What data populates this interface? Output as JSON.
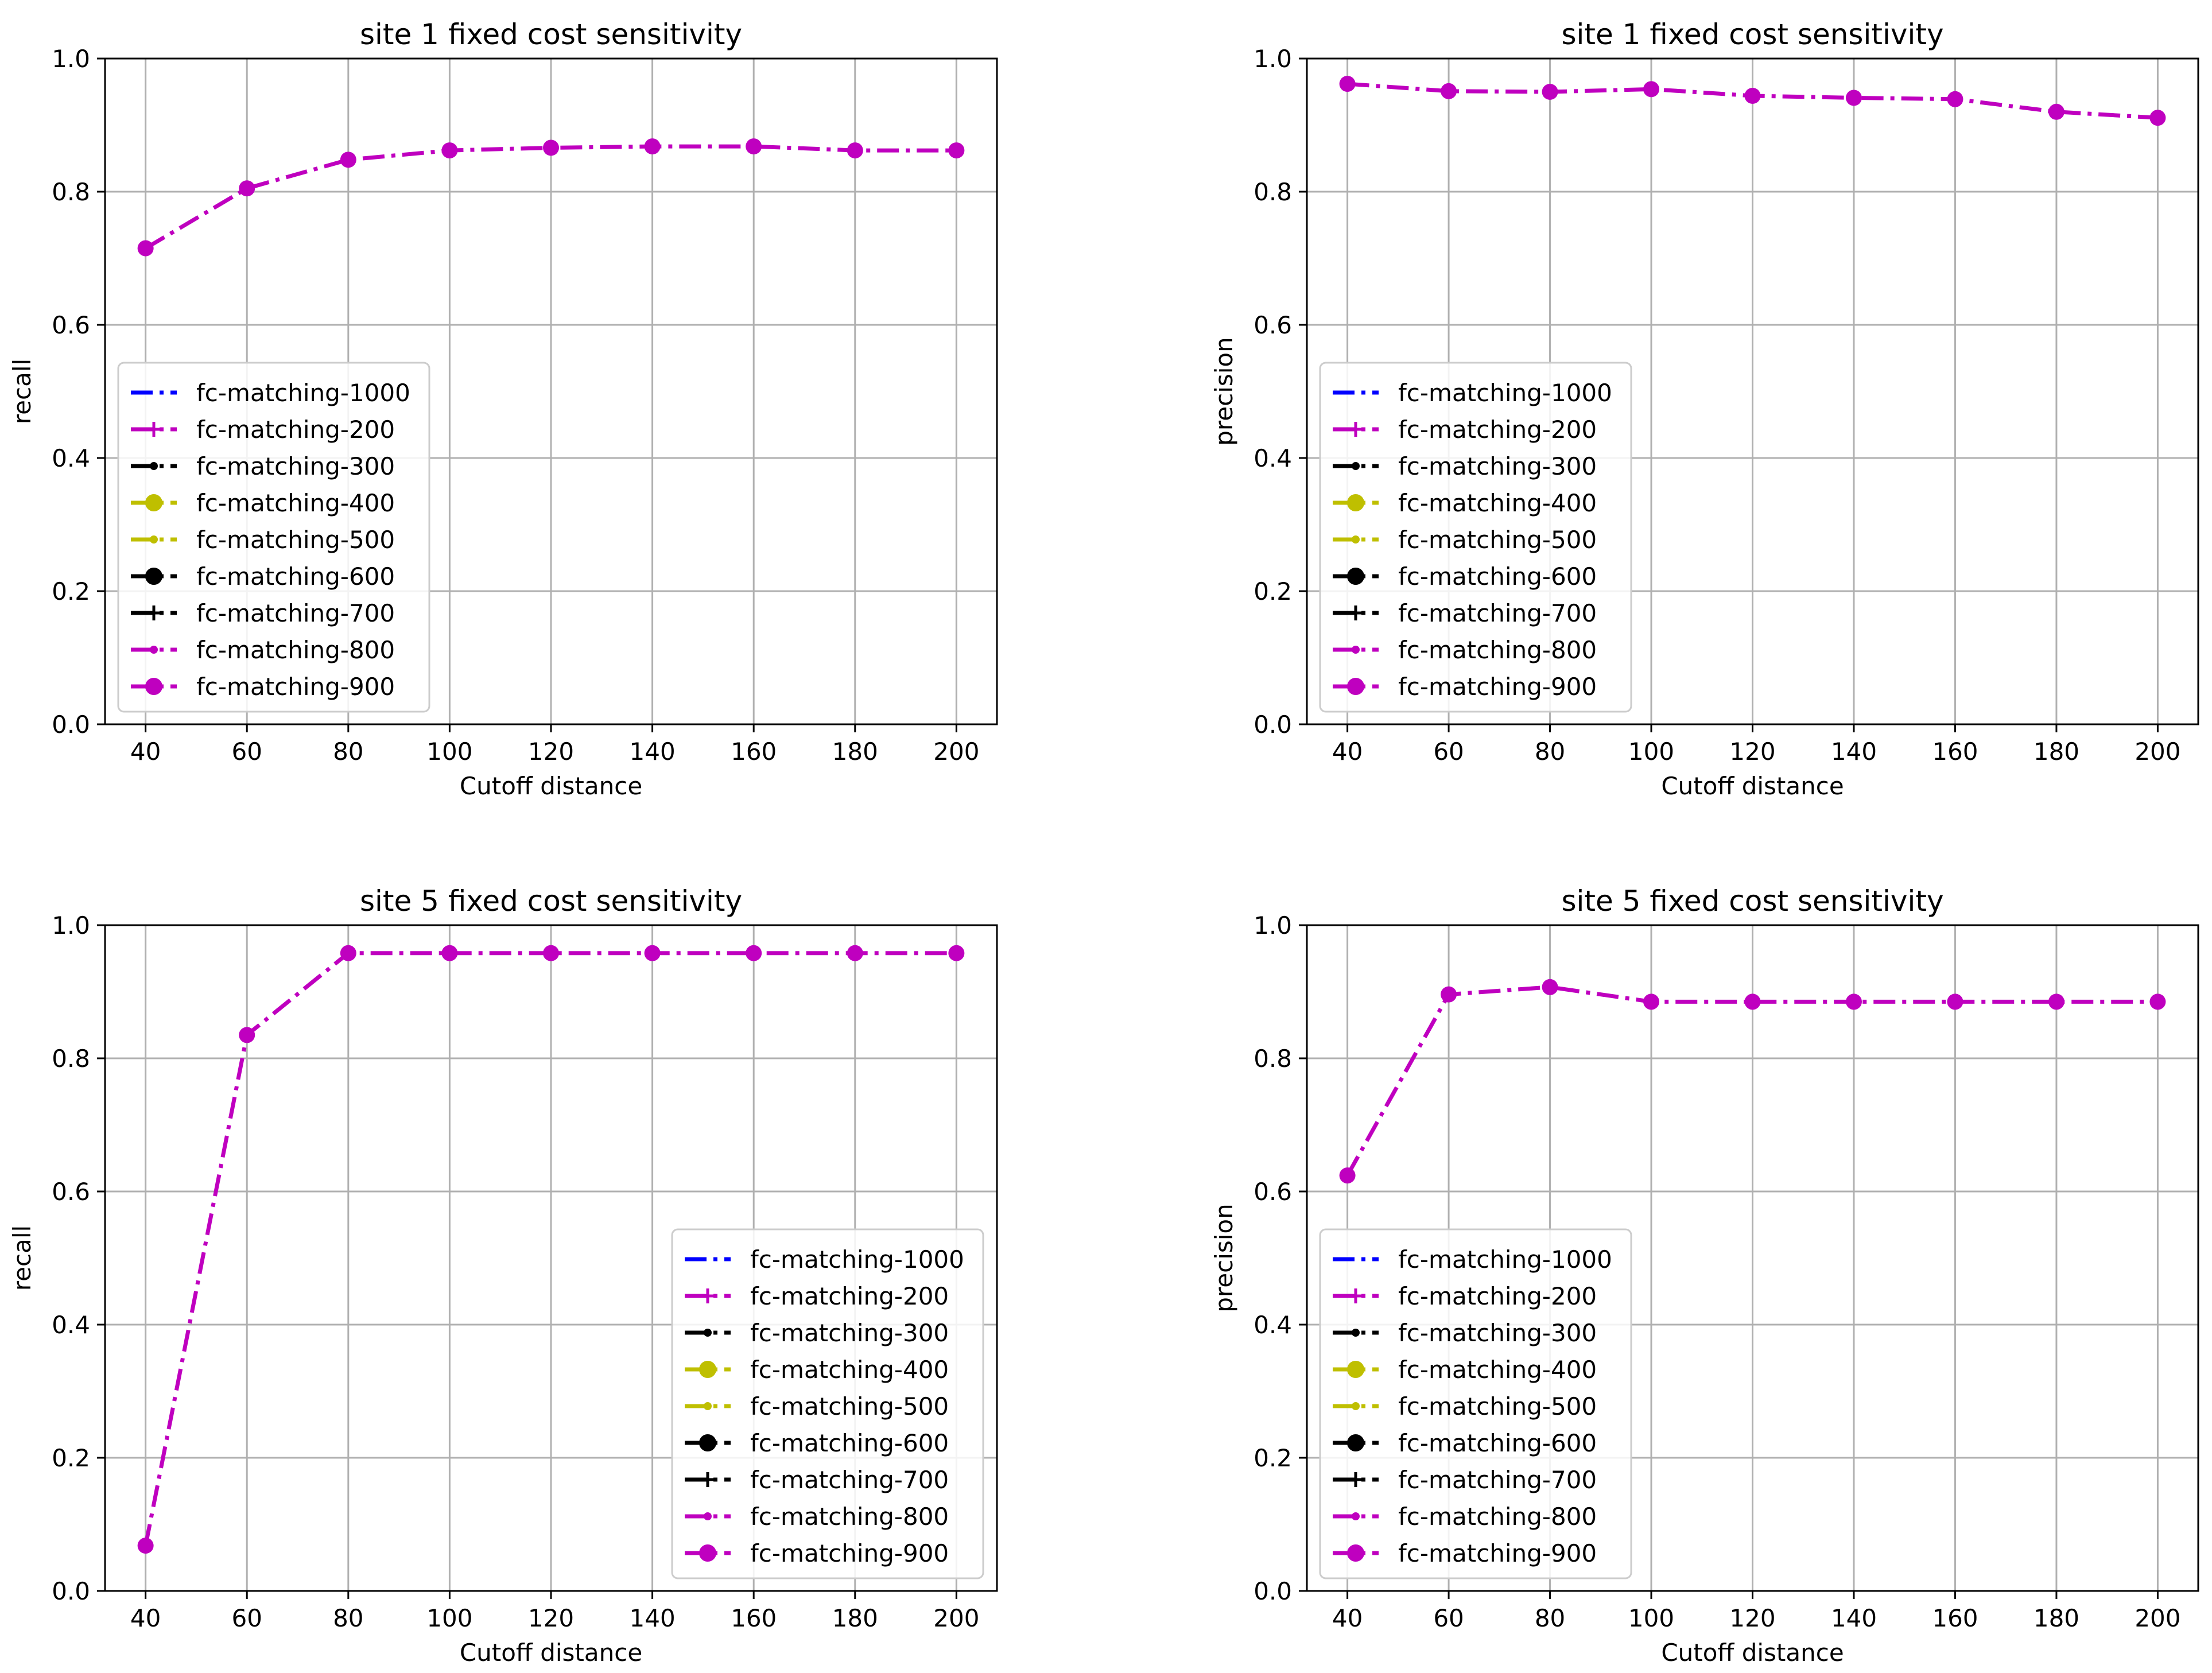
{
  "figure": {
    "layout": "2x2 grid of line charts"
  },
  "legend_entries": [
    {
      "label": "fc-matching-1000",
      "color": "#0000ff",
      "marker": "none"
    },
    {
      "label": "fc-matching-200",
      "color": "#bf00bf",
      "marker": "plus"
    },
    {
      "label": "fc-matching-300",
      "color": "#000000",
      "marker": "small-dot"
    },
    {
      "label": "fc-matching-400",
      "color": "#bfbf00",
      "marker": "circle"
    },
    {
      "label": "fc-matching-500",
      "color": "#bfbf00",
      "marker": "small-dot"
    },
    {
      "label": "fc-matching-600",
      "color": "#000000",
      "marker": "circle"
    },
    {
      "label": "fc-matching-700",
      "color": "#000000",
      "marker": "plus"
    },
    {
      "label": "fc-matching-800",
      "color": "#bf00bf",
      "marker": "small-dot"
    },
    {
      "label": "fc-matching-900",
      "color": "#bf00bf",
      "marker": "circle"
    }
  ],
  "chart_data": [
    {
      "type": "line",
      "title": "site 1 fixed cost sensitivity",
      "xlabel": "Cutoff distance",
      "ylabel": "recall",
      "x": [
        40,
        60,
        80,
        100,
        120,
        140,
        160,
        180,
        200
      ],
      "xticks": [
        "40",
        "60",
        "80",
        "100",
        "120",
        "140",
        "160",
        "180",
        "200"
      ],
      "yticks": [
        "0.0",
        "0.2",
        "0.4",
        "0.6",
        "0.8",
        "1.0"
      ],
      "xlim": [
        32,
        208
      ],
      "ylim": [
        0.0,
        1.0
      ],
      "grid": true,
      "legend_position": "lower-left",
      "series": [
        {
          "name": "fc-matching-900",
          "color": "#bf00bf",
          "values": [
            0.715,
            0.805,
            0.848,
            0.862,
            0.866,
            0.868,
            0.868,
            0.862,
            0.862
          ]
        }
      ]
    },
    {
      "type": "line",
      "title": "site 1 fixed cost sensitivity",
      "xlabel": "Cutoff distance",
      "ylabel": "precision",
      "x": [
        40,
        60,
        80,
        100,
        120,
        140,
        160,
        180,
        200
      ],
      "xticks": [
        "40",
        "60",
        "80",
        "100",
        "120",
        "140",
        "160",
        "180",
        "200"
      ],
      "yticks": [
        "0.0",
        "0.2",
        "0.4",
        "0.6",
        "0.8",
        "1.0"
      ],
      "xlim": [
        32,
        208
      ],
      "ylim": [
        0.0,
        1.0
      ],
      "grid": true,
      "legend_position": "lower-left",
      "series": [
        {
          "name": "fc-matching-900",
          "color": "#bf00bf",
          "values": [
            0.962,
            0.951,
            0.95,
            0.954,
            0.944,
            0.941,
            0.939,
            0.92,
            0.911
          ]
        }
      ]
    },
    {
      "type": "line",
      "title": "site 5 fixed cost sensitivity",
      "xlabel": "Cutoff distance",
      "ylabel": "recall",
      "x": [
        40,
        60,
        80,
        100,
        120,
        140,
        160,
        180,
        200
      ],
      "xticks": [
        "40",
        "60",
        "80",
        "100",
        "120",
        "140",
        "160",
        "180",
        "200"
      ],
      "yticks": [
        "0.0",
        "0.2",
        "0.4",
        "0.6",
        "0.8",
        "1.0"
      ],
      "xlim": [
        32,
        208
      ],
      "ylim": [
        0.0,
        1.0
      ],
      "grid": true,
      "legend_position": "lower-right",
      "series": [
        {
          "name": "fc-matching-900",
          "color": "#bf00bf",
          "values": [
            0.068,
            0.835,
            0.958,
            0.958,
            0.958,
            0.958,
            0.958,
            0.958,
            0.958
          ]
        }
      ]
    },
    {
      "type": "line",
      "title": "site 5 fixed cost sensitivity",
      "xlabel": "Cutoff distance",
      "ylabel": "precision",
      "x": [
        40,
        60,
        80,
        100,
        120,
        140,
        160,
        180,
        200
      ],
      "xticks": [
        "40",
        "60",
        "80",
        "100",
        "120",
        "140",
        "160",
        "180",
        "200"
      ],
      "yticks": [
        "0.0",
        "0.2",
        "0.4",
        "0.6",
        "0.8",
        "1.0"
      ],
      "xlim": [
        32,
        208
      ],
      "ylim": [
        0.0,
        1.0
      ],
      "grid": true,
      "legend_position": "lower-left",
      "series": [
        {
          "name": "fc-matching-900",
          "color": "#bf00bf",
          "values": [
            0.624,
            0.896,
            0.907,
            0.885,
            0.885,
            0.885,
            0.885,
            0.885,
            0.885
          ]
        }
      ]
    }
  ]
}
